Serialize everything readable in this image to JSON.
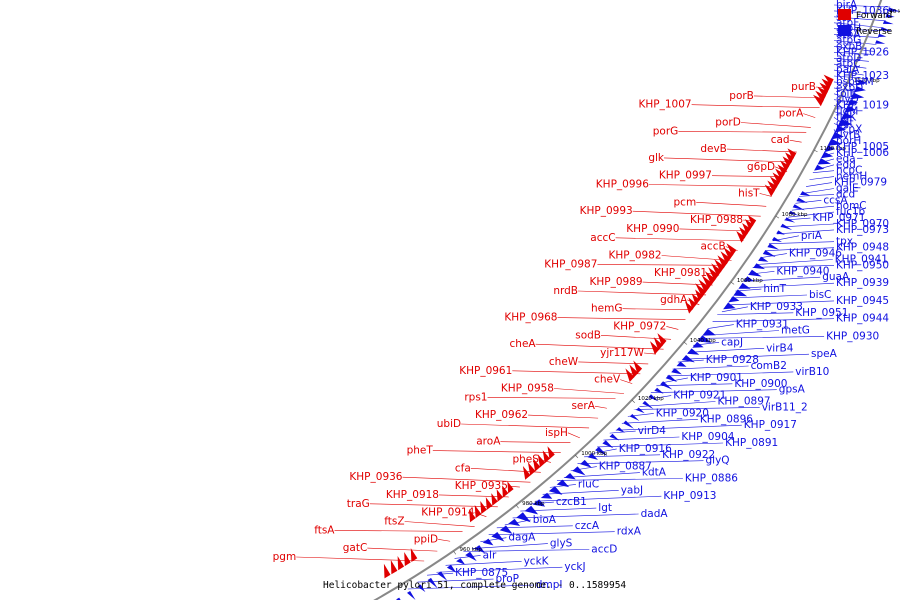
{
  "colors": {
    "forward": "#e00000",
    "reverse": "#1010e0",
    "backbone": "#888888"
  },
  "legend": [
    {
      "label": "Forward",
      "color": "#e00000"
    },
    {
      "label": "Reverse",
      "color": "#1010e0"
    }
  ],
  "caption": "Helicobacter pylori 51, complete genome. - 0..1589954",
  "ticks": [
    "1140 kbp",
    "1120 kbp",
    "1100 kbp",
    "1080 kbp",
    "1060 kbp",
    "1040 kbp",
    "1020 kbp",
    "1000 kbp",
    "980 kbp",
    "960 kbp"
  ],
  "forward_labels": [
    "purB",
    "porB",
    "KHP_1007",
    "porA",
    "porD",
    "porG",
    "cad",
    "devB",
    "glk",
    "g6pD",
    "KHP_0997",
    "KHP_0996",
    "hisT",
    "pcm",
    "KHP_0993",
    "KHP_0988",
    "KHP_0990",
    "accC",
    "accB",
    "KHP_0982",
    "KHP_0987",
    "KHP_0981",
    "KHP_0989",
    "nrdB",
    "gdhA",
    "hemG",
    "KHP_0968",
    "KHP_0972",
    "sodB",
    "cheA",
    "yjr117W",
    "cheW",
    "KHP_0961",
    "cheV",
    "KHP_0958",
    "rps1",
    "serA",
    "KHP_0962",
    "ubiD",
    "ispH",
    "aroA",
    "pheT",
    "pheS",
    "cfa",
    "KHP_0936",
    "KHP_0935",
    "KHP_0918",
    "traG",
    "KHP_0914",
    "ftsZ",
    "ftsA",
    "ppiD",
    "gatC",
    "pgm"
  ],
  "reverse_labels": [
    "birA",
    "KHP_1036",
    "soj",
    "atpF",
    "atpH",
    "atpA",
    "atpG",
    "exbB",
    "KHP_1026",
    "atpD",
    "atpC",
    "palA",
    "KHP_1023",
    "bsp6IM",
    "exbD",
    "tolB",
    "slyD",
    "KHP_1019",
    "flgM",
    "flgK",
    "ggt",
    "hcpX",
    "uvrB",
    "horH",
    "KHP_1005",
    "KHP_1006",
    "eda",
    "edd",
    "hcpC",
    "hemH",
    "KHP_0979",
    "galE",
    "dcd",
    "ccsA",
    "homC",
    "fucTb",
    "KHP_0971",
    "KHP_0970",
    "KHP_0973",
    "priA",
    "tpx",
    "KHP_0948",
    "KHP_0946",
    "KHP_0941",
    "KHP_0950",
    "KHP_0940",
    "guaA",
    "KHP_0939",
    "hinT",
    "bisC",
    "KHP_0945",
    "KHP_0933",
    "KHP_0951",
    "KHP_0944",
    "KHP_0931",
    "metG",
    "KHP_0930",
    "capJ",
    "virB4",
    "speA",
    "KHP_0928",
    "comB2",
    "virB10",
    "KHP_0901",
    "KHP_0900",
    "gpsA",
    "KHP_0921",
    "KHP_0897",
    "virB11_2",
    "KHP_0920",
    "KHP_0896",
    "KHP_0917",
    "virD4",
    "KHP_0904",
    "KHP_0891",
    "KHP_0916",
    "KHP_0922",
    "glyQ",
    "KHP_0887",
    "kdtA",
    "KHP_0886",
    "rluC",
    "yabJ",
    "KHP_0913",
    "czcB1",
    "lgt",
    "dadA",
    "bioA",
    "czcA",
    "rdxA",
    "dagA",
    "glyS",
    "accD",
    "alr",
    "yckK",
    "yckJ",
    "KHP_0875",
    "proP",
    "dmpI"
  ]
}
